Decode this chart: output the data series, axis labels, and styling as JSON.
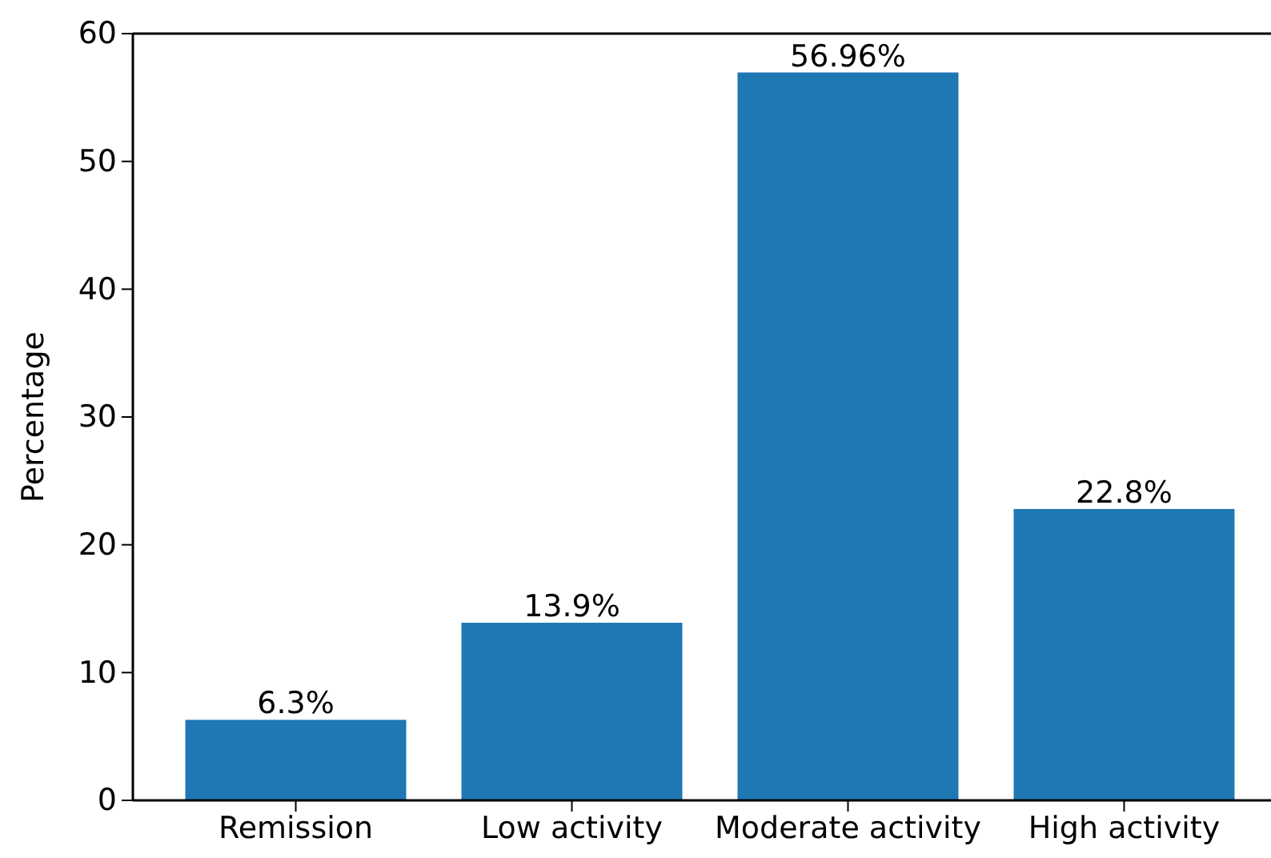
{
  "chart_data": {
    "type": "bar",
    "ylabel": "Percentage",
    "categories": [
      "Remission",
      "Low activity",
      "Moderate activity",
      "High activity"
    ],
    "values": [
      6.3,
      13.9,
      56.96,
      22.8
    ],
    "value_labels": [
      "6.3%",
      "13.9%",
      "56.96%",
      "22.8%"
    ],
    "color": "#1f77b4",
    "ylim": [
      0,
      60
    ],
    "yticks": [
      0,
      10,
      20,
      30,
      40,
      50,
      60
    ],
    "grid": false
  }
}
